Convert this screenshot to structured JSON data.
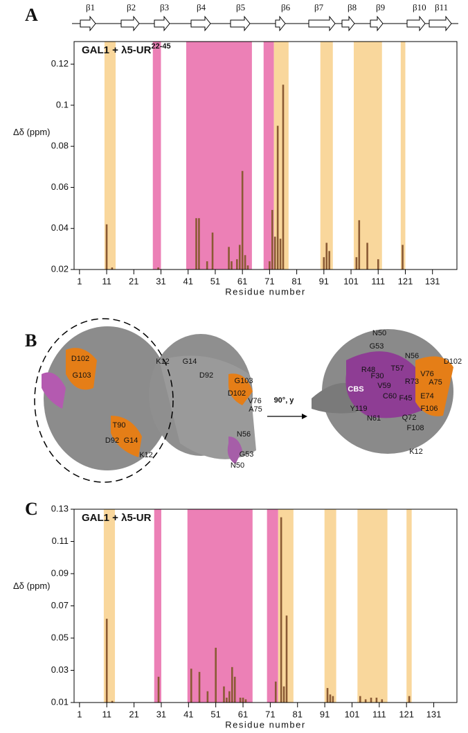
{
  "panels": [
    "A",
    "B",
    "C"
  ],
  "strands": [
    "β1",
    "β2",
    "β3",
    "β4",
    "β5",
    "β6",
    "β7",
    "β8",
    "β9",
    "β10",
    "β11"
  ],
  "structure_labels": [
    "D102",
    "G103",
    "T90",
    "D92",
    "G14",
    "K12",
    "K12",
    "G14",
    "D92",
    "G103",
    "D102",
    "V76",
    "A75",
    "N56",
    "G53",
    "N50",
    "90°, y",
    "N50",
    "G53",
    "N56",
    "D102",
    "R48",
    "T57",
    "V76",
    "F30",
    "R73",
    "A75",
    "V59",
    "CBS",
    "C60",
    "F45",
    "E74",
    "Y119",
    "N61",
    "F106",
    "Q72",
    "F108",
    "K12"
  ],
  "chart_data": [
    {
      "type": "bar",
      "title": "GAL1 + λ5-UR",
      "title_superscript": "22-45",
      "x_label": "Residue number",
      "y_label": "Δδ (ppm)",
      "x": [
        11,
        13,
        30,
        44,
        45,
        48,
        50,
        56,
        57,
        59,
        60,
        61,
        62,
        63,
        71,
        72,
        73,
        74,
        75,
        76,
        91,
        92,
        93,
        103,
        104,
        107,
        111,
        120
      ],
      "values": [
        0.042,
        0.021,
        0.021,
        0.045,
        0.045,
        0.024,
        0.038,
        0.031,
        0.024,
        0.025,
        0.032,
        0.068,
        0.027,
        0.022,
        0.024,
        0.049,
        0.036,
        0.09,
        0.035,
        0.11,
        0.026,
        0.033,
        0.029,
        0.026,
        0.044,
        0.033,
        0.025,
        0.032
      ],
      "color": "#8a5a34",
      "regions": [
        {
          "start": 10.2,
          "end": 14.3,
          "color": "#f9d79c"
        },
        {
          "start": 28,
          "end": 31,
          "color": "#ec80b6"
        },
        {
          "start": 40.3,
          "end": 64.5,
          "color": "#ec80b6"
        },
        {
          "start": 68.8,
          "end": 72.6,
          "color": "#ec80b6"
        },
        {
          "start": 72.6,
          "end": 78,
          "color": "#f9d79c"
        },
        {
          "start": 89.7,
          "end": 94.3,
          "color": "#f9d79c"
        },
        {
          "start": 102,
          "end": 112.4,
          "color": "#f9d79c"
        },
        {
          "start": 119.3,
          "end": 121,
          "color": "#f9d79c"
        }
      ],
      "xlim": [
        -1,
        140
      ],
      "ylim": [
        0.02,
        0.131
      ],
      "xticks": [
        1,
        11,
        21,
        31,
        41,
        51,
        61,
        71,
        81,
        91,
        101,
        111,
        121,
        131
      ],
      "yticks": [
        0.02,
        0.04,
        0.06,
        0.08,
        0.1,
        0.12
      ]
    },
    {
      "type": "bar",
      "title": "GAL1 + λ5-UR",
      "x_label": "Residue number",
      "y_label": "Δδ (ppm)",
      "x": [
        11,
        13,
        30,
        42,
        45,
        48,
        51,
        54,
        55,
        56,
        57,
        58,
        60,
        61,
        62,
        73,
        75,
        76,
        77,
        92,
        93,
        94,
        104,
        106,
        108,
        110,
        112,
        122
      ],
      "values": [
        0.062,
        0.011,
        0.026,
        0.031,
        0.029,
        0.017,
        0.044,
        0.02,
        0.013,
        0.017,
        0.032,
        0.026,
        0.013,
        0.013,
        0.012,
        0.023,
        0.125,
        0.02,
        0.064,
        0.019,
        0.015,
        0.014,
        0.014,
        0.012,
        0.013,
        0.013,
        0.012,
        0.014
      ],
      "color": "#8a5a34",
      "regions": [
        {
          "start": 9.9,
          "end": 14,
          "color": "#f9d79c"
        },
        {
          "start": 28.4,
          "end": 31,
          "color": "#ec80b6"
        },
        {
          "start": 40.6,
          "end": 64.5,
          "color": "#ec80b6"
        },
        {
          "start": 69.8,
          "end": 73.9,
          "color": "#ec80b6"
        },
        {
          "start": 73.9,
          "end": 79.5,
          "color": "#f9d79c"
        },
        {
          "start": 90.9,
          "end": 95.2,
          "color": "#f9d79c"
        },
        {
          "start": 103,
          "end": 114,
          "color": "#f9d79c"
        },
        {
          "start": 121,
          "end": 122.9,
          "color": "#f9d79c"
        }
      ],
      "xlim": [
        -1,
        139.5
      ],
      "ylim": [
        0.01,
        0.13
      ],
      "xticks": [
        1,
        11,
        21,
        31,
        41,
        51,
        61,
        71,
        81,
        91,
        101,
        111,
        121,
        131
      ],
      "yticks": [
        0.01,
        0.03,
        0.05,
        0.07,
        0.09,
        0.11,
        0.13
      ]
    }
  ]
}
